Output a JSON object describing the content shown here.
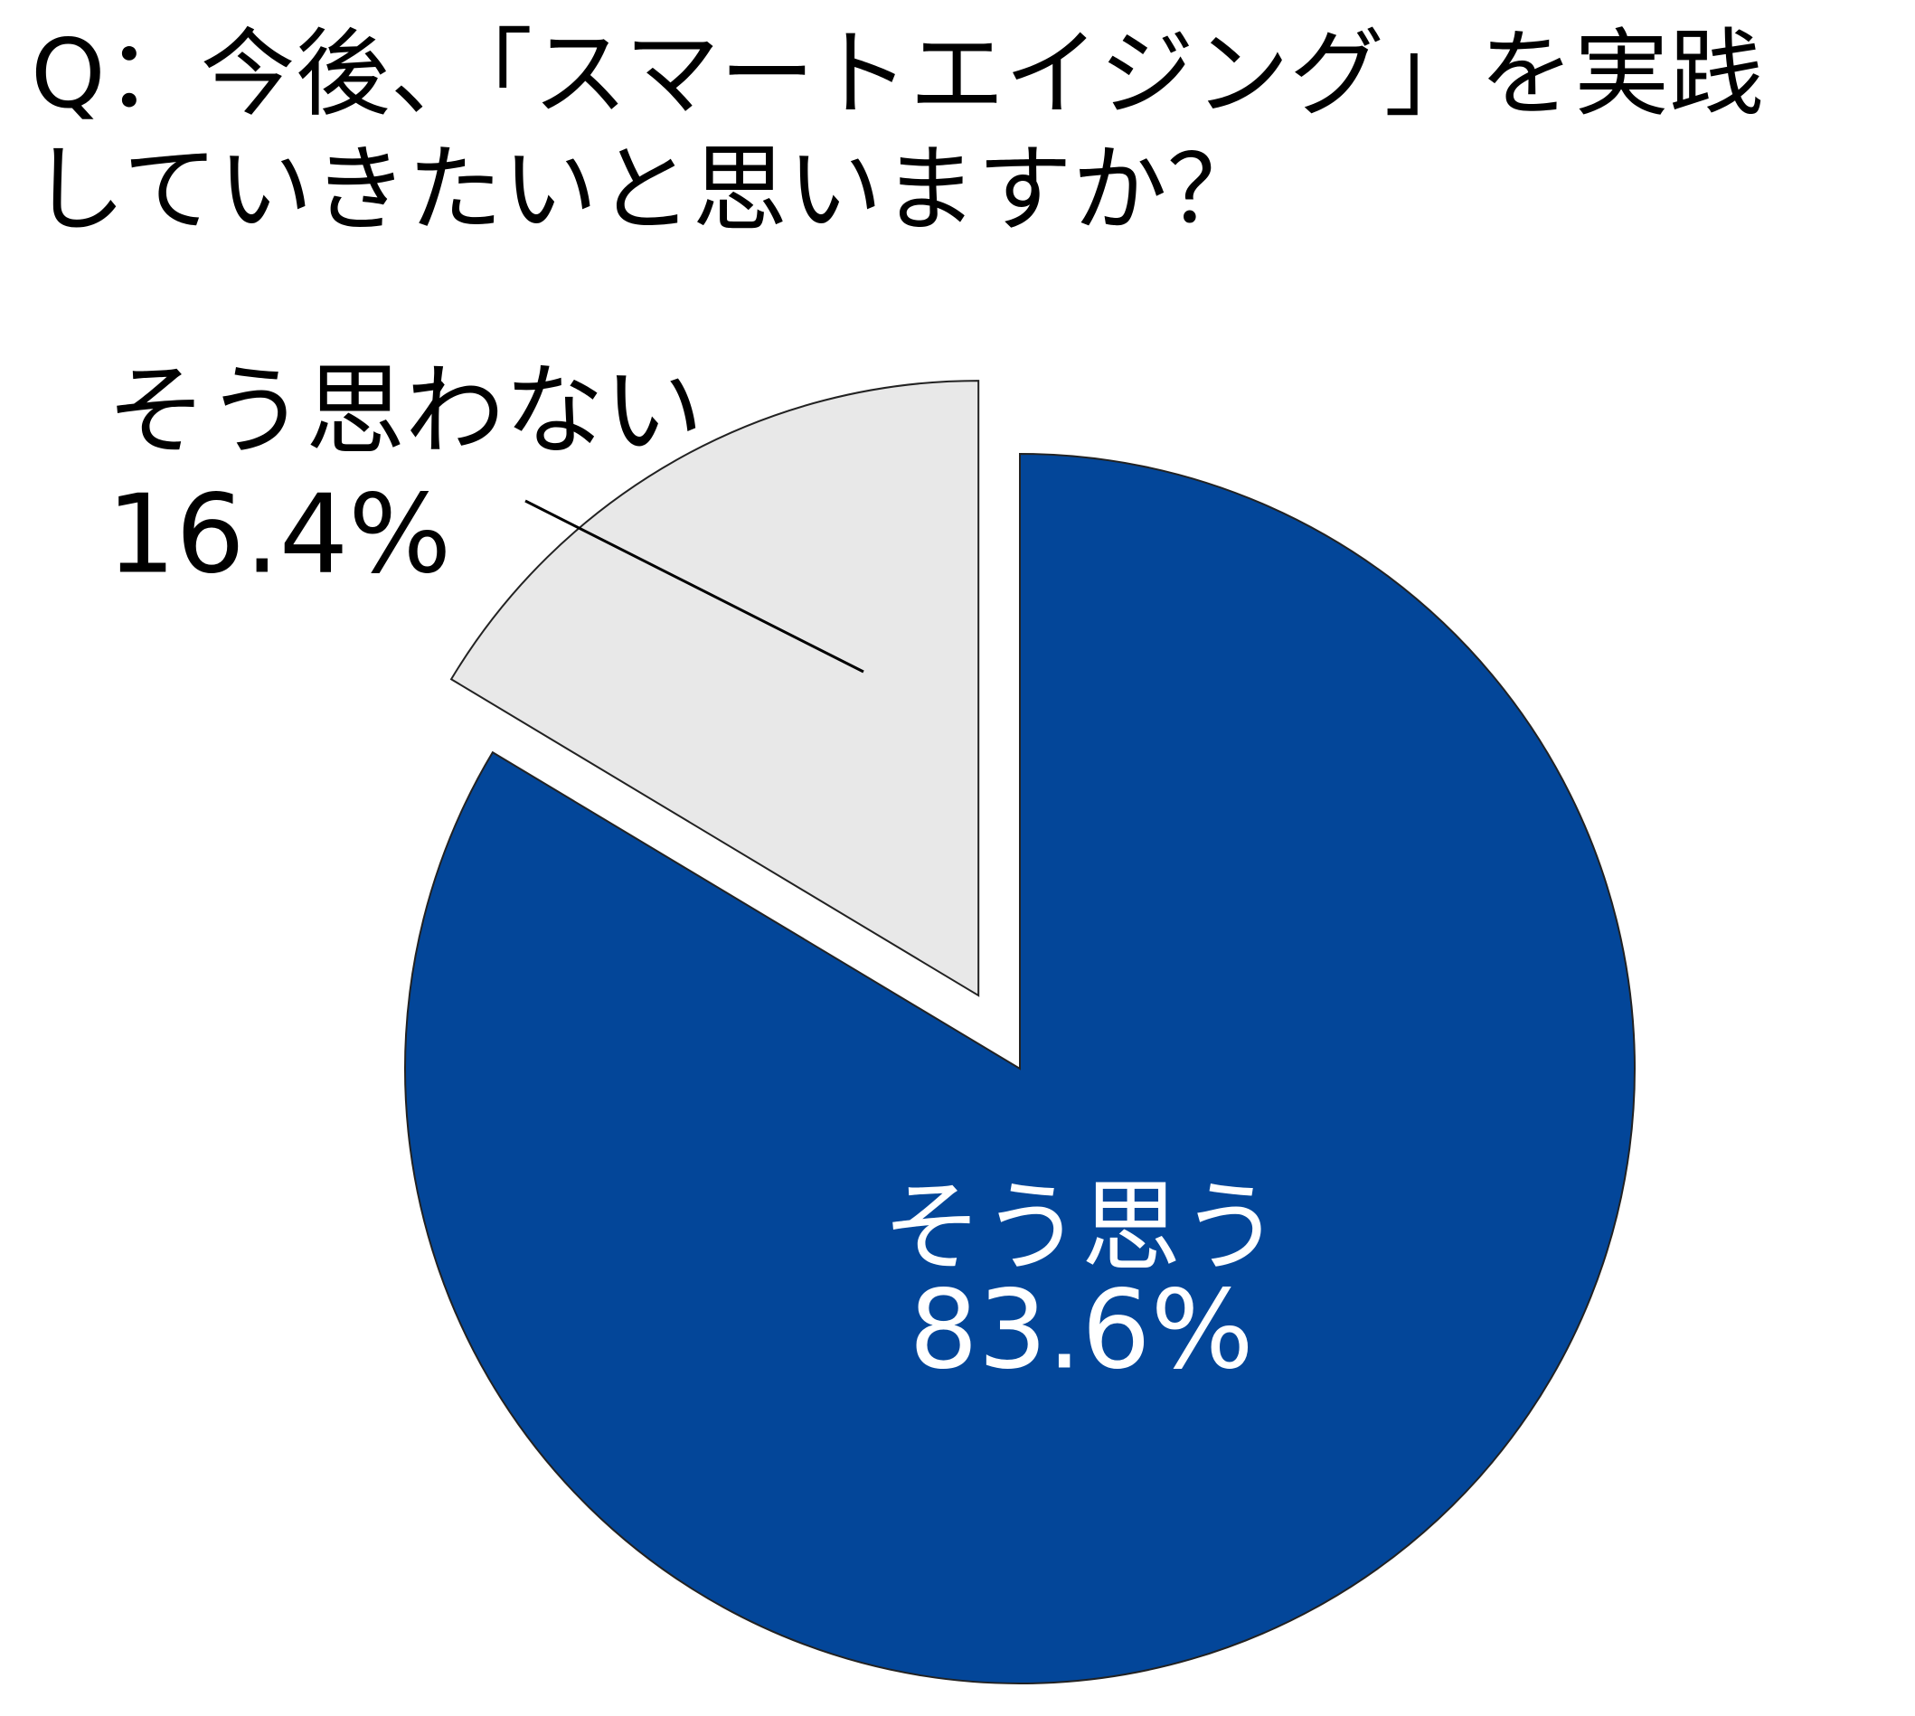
{
  "chart_data": {
    "type": "pie",
    "title": "Q：今後、「スマートエイジング」を実践していきたいと思いますか？",
    "categories": [
      "そう思う",
      "そう思わない"
    ],
    "values": [
      83.6,
      16.4
    ],
    "value_labels": [
      "83.6%",
      "16.4%"
    ],
    "colors": [
      "#034699",
      "#e8e8e8"
    ],
    "label_colors": [
      "#ffffff",
      "#000000"
    ]
  }
}
